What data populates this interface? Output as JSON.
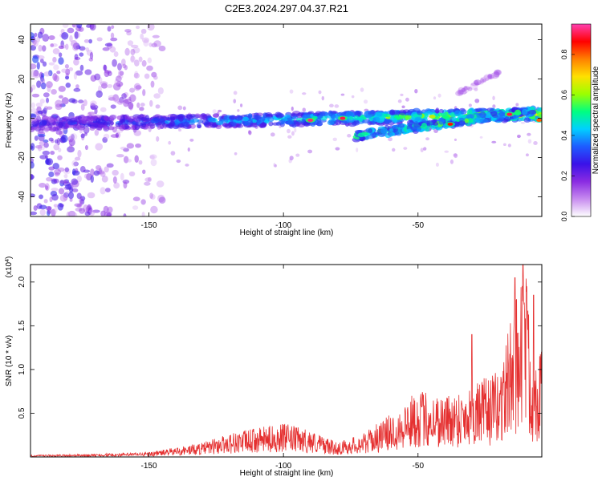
{
  "title": "C2E3.2024.297.04.37.R21",
  "chart_data": [
    {
      "type": "heatmap",
      "xlabel": "Height of straight line (km)",
      "ylabel": "Frequency (Hz)",
      "xlim": [
        -194,
        -4
      ],
      "ylim": [
        -50,
        48
      ],
      "xticks": [
        -150,
        -100,
        -50
      ],
      "yticks": [
        -40,
        -20,
        0,
        20,
        40
      ],
      "colorbar": {
        "label": "Normalized spectral amplitude",
        "range": [
          0,
          0.95
        ],
        "ticks": [
          0.0,
          0.2,
          0.4,
          0.6,
          0.8
        ],
        "colors": [
          "#ffffff",
          "#c78bef",
          "#8a2be2",
          "#3a12e8",
          "#1e5cff",
          "#00d0ff",
          "#00ff80",
          "#9cff00",
          "#ffe000",
          "#ff8000",
          "#ff0000",
          "#ff40b0"
        ]
      },
      "bands": [
        {
          "name": "main",
          "x_start": -194,
          "x_end": -4,
          "freq_start": -3,
          "freq_end": 2,
          "width": 6
        },
        {
          "name": "branch",
          "x_start": -73,
          "x_end": -7,
          "freq_start": -9,
          "freq_end": 4,
          "width": 4
        },
        {
          "name": "faint upper branch",
          "x_start": -35,
          "x_end": -20,
          "freq_start": 13,
          "freq_end": 23,
          "width": 2
        }
      ],
      "hot_spots": [
        {
          "x": -90,
          "y": -1,
          "amp": 0.92
        },
        {
          "x": -78,
          "y": 0,
          "amp": 0.9
        },
        {
          "x": -16,
          "y": 2,
          "amp": 0.9
        },
        {
          "x": -38,
          "y": -3,
          "amp": 0.85
        },
        {
          "x": -5,
          "y": -1,
          "amp": 0.8
        }
      ],
      "noise_region_x": [
        -194,
        -145
      ]
    },
    {
      "type": "line",
      "xlabel": "Height of straight line (km)",
      "ylabel": "SNR (10 * v/v)",
      "y_multiplier": "(x10^4)",
      "xlim": [
        -194,
        -4
      ],
      "ylim": [
        0,
        22000
      ],
      "xticks": [
        -150,
        -100,
        -50
      ],
      "yticks": [
        5000,
        10000,
        15000,
        20000
      ],
      "ytick_labels": [
        "0.5",
        "1.0",
        "1.5",
        "2.0"
      ],
      "line_color": "#e53030",
      "envelope": [
        [
          -194,
          200
        ],
        [
          -170,
          300
        ],
        [
          -150,
          500
        ],
        [
          -140,
          1000
        ],
        [
          -130,
          1500
        ],
        [
          -120,
          2500
        ],
        [
          -110,
          3000
        ],
        [
          -100,
          3500
        ],
        [
          -90,
          2800
        ],
        [
          -80,
          1500
        ],
        [
          -70,
          2500
        ],
        [
          -60,
          4500
        ],
        [
          -50,
          7000
        ],
        [
          -40,
          6500
        ],
        [
          -30,
          7500
        ],
        [
          -20,
          9000
        ],
        [
          -15,
          15000
        ],
        [
          -10,
          22000
        ],
        [
          -8,
          10000
        ],
        [
          -4,
          12000
        ]
      ],
      "peaks": [
        {
          "x": -11,
          "y": 22000
        },
        {
          "x": -14,
          "y": 20500
        },
        {
          "x": -7,
          "y": 18500
        },
        {
          "x": -4,
          "y": 12000
        },
        {
          "x": -30,
          "y": 14000
        }
      ]
    }
  ]
}
